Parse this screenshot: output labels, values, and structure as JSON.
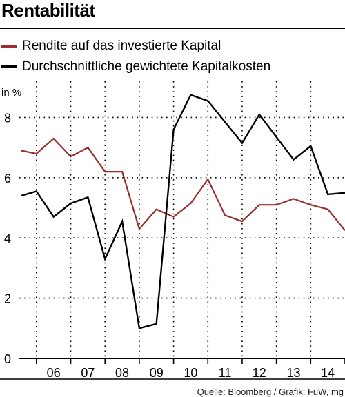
{
  "title": "Rentabilität",
  "source": "Quelle: Bloomberg / Grafik: FuW, mg",
  "colors": {
    "rendite": "#9b2f2f",
    "kapitalkosten": "#000000",
    "grid": "#000000"
  },
  "chart_data": {
    "type": "line",
    "ylabel": "in %",
    "ylim": [
      0,
      9.2
    ],
    "yticks": [
      0,
      2,
      4,
      6,
      8
    ],
    "grid": true,
    "legend_position": "top-left",
    "categories": [
      "06",
      "07",
      "08",
      "09",
      "10",
      "11",
      "12",
      "13",
      "14"
    ],
    "series": [
      {
        "name": "Rendite auf das investierte Kapital",
        "color": "#9b2f2f",
        "x": [
          5.55,
          6.0,
          6.5,
          7.0,
          7.5,
          8.0,
          8.5,
          9.0,
          9.5,
          10.0,
          10.5,
          11.0,
          11.5,
          12.0,
          12.5,
          13.0,
          13.5,
          14.0,
          14.5,
          15.0
        ],
        "values": [
          6.9,
          6.8,
          7.3,
          6.7,
          7.0,
          6.2,
          6.2,
          4.3,
          4.95,
          4.7,
          5.15,
          5.95,
          4.75,
          4.55,
          5.1,
          5.1,
          5.3,
          5.1,
          4.95,
          4.25
        ]
      },
      {
        "name": "Durchschnittliche gewichtete Kapitalkosten",
        "color": "#000000",
        "x": [
          5.55,
          6.0,
          6.5,
          7.0,
          7.5,
          8.0,
          8.5,
          9.0,
          9.5,
          10.0,
          10.5,
          11.0,
          11.5,
          12.0,
          12.5,
          13.0,
          13.5,
          14.0,
          14.5,
          15.0
        ],
        "values": [
          5.4,
          5.55,
          4.7,
          5.15,
          5.35,
          3.3,
          4.55,
          1.0,
          1.15,
          7.6,
          8.75,
          8.55,
          7.85,
          7.15,
          8.1,
          7.35,
          6.6,
          7.05,
          5.45,
          5.5
        ]
      }
    ]
  }
}
